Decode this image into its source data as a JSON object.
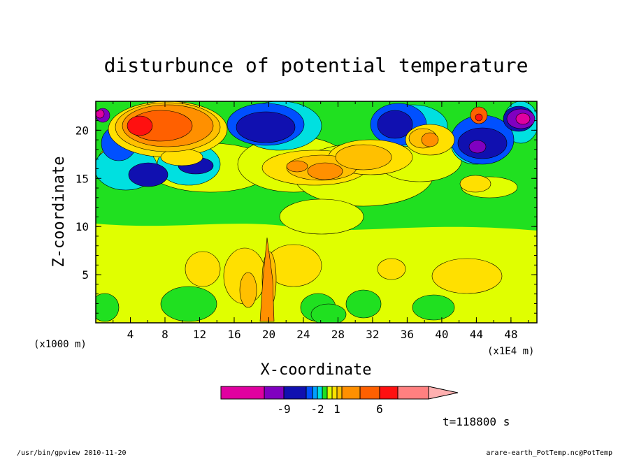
{
  "chart_data": {
    "type": "heatmap",
    "title": "disturbunce of potential temperature",
    "xlabel": "X-coordinate",
    "ylabel": "Z-coordinate",
    "x_unit": "(x1E4 m)",
    "y_unit": "(x1000 m)",
    "xlim": [
      0,
      51
    ],
    "ylim": [
      0,
      23
    ],
    "x_ticks": [
      4,
      8,
      12,
      16,
      20,
      24,
      28,
      32,
      36,
      40,
      44,
      48
    ],
    "y_ticks": [
      5,
      10,
      15,
      20
    ],
    "colorbar": {
      "colors": [
        "#e000a0",
        "#8000c0",
        "#1010b0",
        "#0050ff",
        "#00a0ff",
        "#00e0e0",
        "#20e020",
        "#e0ff00",
        "#ffe000",
        "#ffc000",
        "#ff9000",
        "#ff6000",
        "#ff1010",
        "#ff8080",
        "#ffb0b0"
      ],
      "tick_labels": [
        "-9",
        "-2",
        "1",
        "6"
      ],
      "extend": "max"
    },
    "time_label": "t=118800 s"
  },
  "footer": {
    "left": "/usr/bin/gpview   2010-11-20",
    "right": "arare-earth_PotTemp.nc@PotTemp"
  }
}
